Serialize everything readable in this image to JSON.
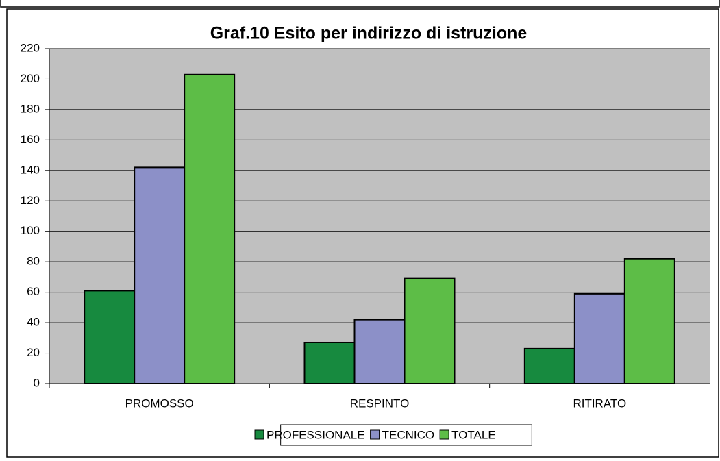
{
  "chart_data": {
    "type": "bar",
    "title": "Graf.10 Esito per indirizzo di istruzione",
    "categories": [
      "PROMOSSO",
      "RESPINTO",
      "RITIRATO"
    ],
    "series": [
      {
        "name": "PROFESSIONALE",
        "color": "#178a3f",
        "values": [
          61,
          27,
          23
        ]
      },
      {
        "name": "TECNICO",
        "color": "#8c90c8",
        "values": [
          142,
          42,
          59
        ]
      },
      {
        "name": "TOTALE",
        "color": "#5dbd47",
        "values": [
          203,
          69,
          82
        ]
      }
    ],
    "ylim": [
      0,
      220
    ],
    "yticks": [
      0,
      20,
      40,
      60,
      80,
      100,
      120,
      140,
      160,
      180,
      200,
      220
    ],
    "grid": true,
    "legend": "bottom"
  }
}
